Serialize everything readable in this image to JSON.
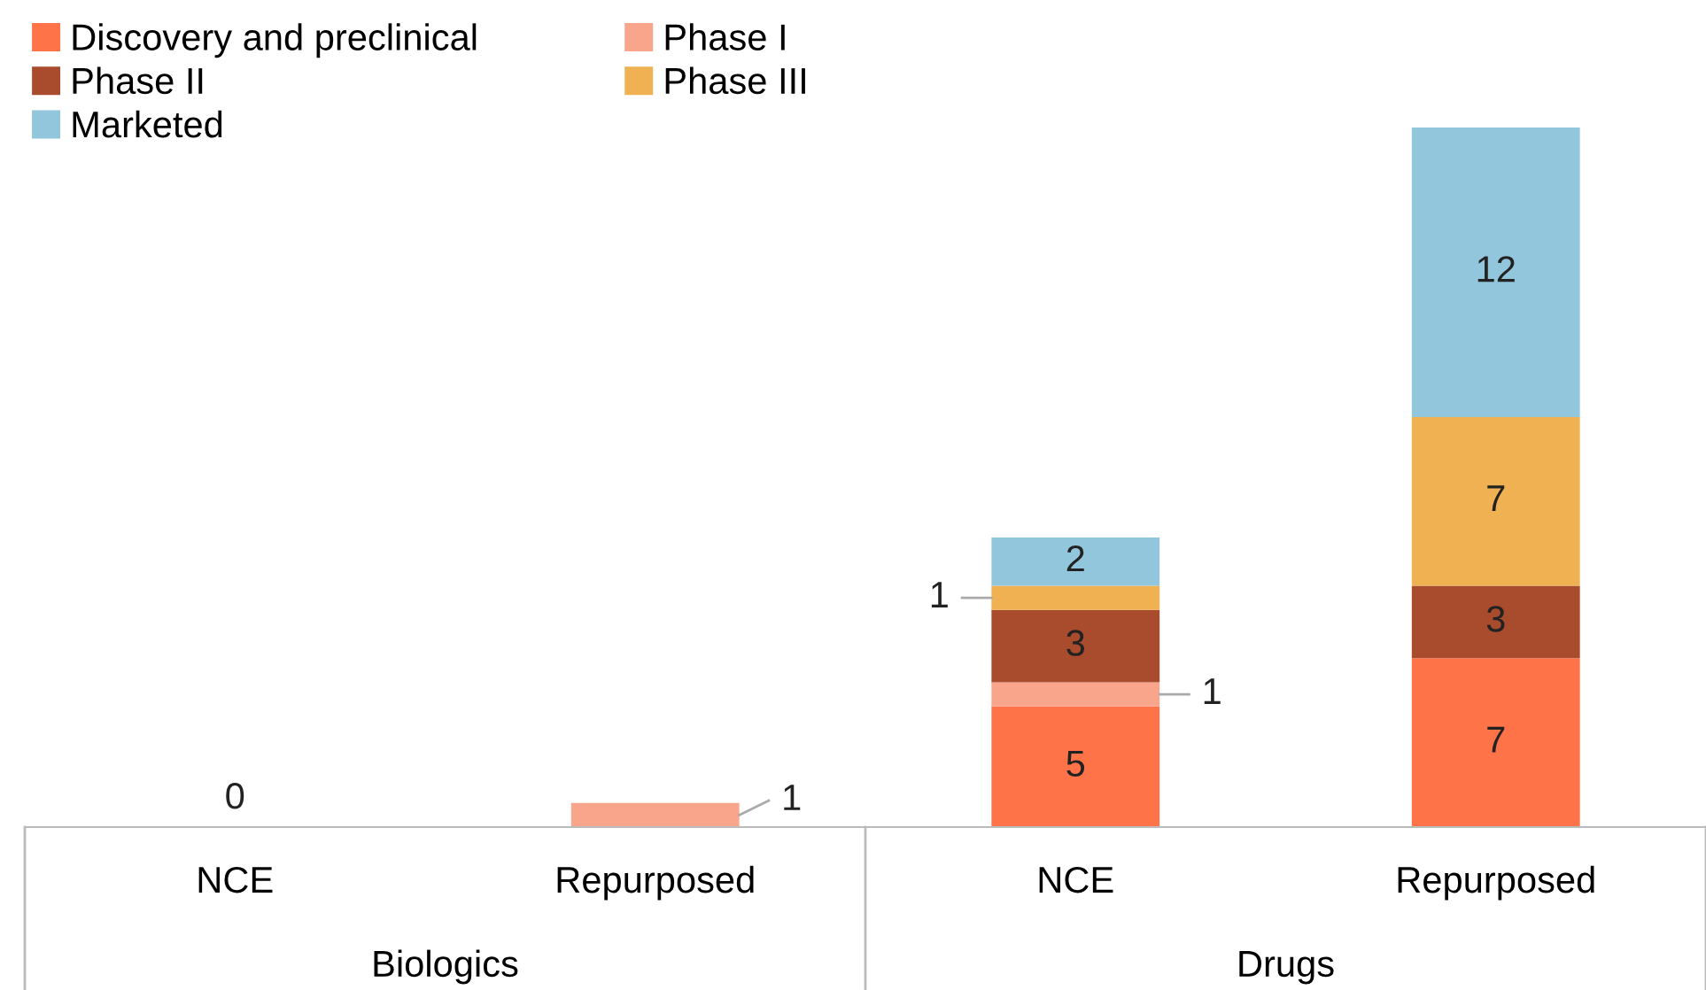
{
  "chart_data": {
    "type": "bar",
    "stacked": true,
    "categories": [
      "NCE",
      "Repurposed",
      "NCE",
      "Repurposed"
    ],
    "series": [
      {
        "name": "Discovery and preclinical",
        "color": "#ff7349",
        "values": [
          0,
          null,
          5,
          7
        ],
        "value_labels": [
          "0",
          null,
          "5",
          "7"
        ]
      },
      {
        "name": "Phase I",
        "color": "#f9a58b",
        "values": [
          null,
          1,
          1,
          null
        ],
        "value_labels": [
          null,
          "1",
          "1",
          null
        ]
      },
      {
        "name": "Phase II",
        "color": "#a94c2e",
        "values": [
          null,
          null,
          3,
          3
        ],
        "value_labels": [
          null,
          null,
          "3",
          "3"
        ]
      },
      {
        "name": "Phase III",
        "color": "#f0b152",
        "values": [
          null,
          null,
          1,
          7
        ],
        "value_labels": [
          null,
          null,
          "1",
          "7"
        ]
      },
      {
        "name": "Marketed",
        "color": "#92c6dc",
        "values": [
          null,
          null,
          2,
          12
        ],
        "value_labels": [
          null,
          null,
          "2",
          "12"
        ]
      }
    ],
    "annotations": [
      "Biologics",
      "Drugs"
    ],
    "legend": "top left"
  }
}
